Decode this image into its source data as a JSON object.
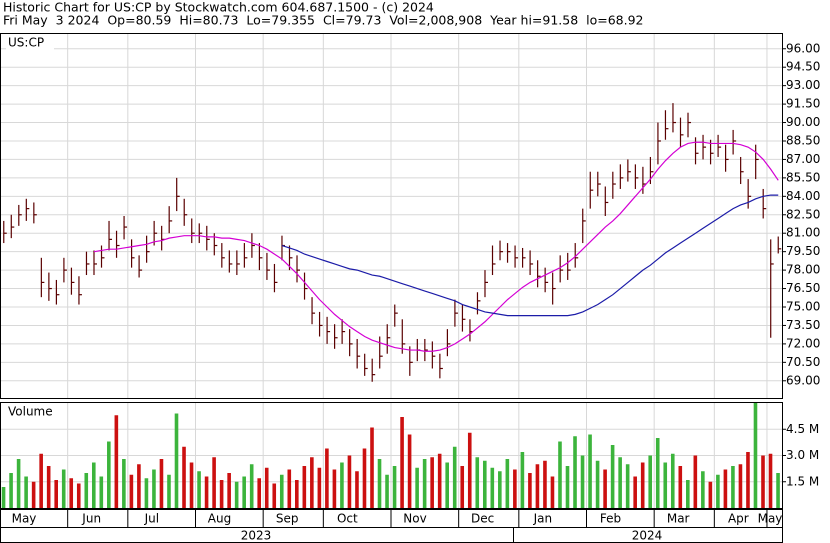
{
  "header": {
    "line1": "Historic Chart for US:CP by Stockwatch.com 604.687.1500 - (c) 2024",
    "line2": "Fri May  3 2024  Op=80.59  Hi=80.73  Lo=79.355  Cl=79.73  Vol=2,008,908  Year hi=91.58  lo=68.92"
  },
  "chart_data": [
    {
      "type": "ohlc",
      "title": "US:CP",
      "color": "#5a0000",
      "grid": true,
      "categories": [
        "May",
        null,
        null,
        null,
        null,
        null,
        null,
        null,
        null,
        "Jun",
        null,
        null,
        null,
        null,
        null,
        null,
        null,
        "Jul",
        null,
        null,
        null,
        null,
        null,
        null,
        null,
        null,
        "Aug",
        null,
        null,
        null,
        null,
        null,
        null,
        null,
        null,
        "Sep",
        null,
        null,
        null,
        null,
        null,
        null,
        null,
        "Oct",
        null,
        null,
        null,
        null,
        null,
        null,
        null,
        null,
        "Nov",
        null,
        null,
        null,
        null,
        null,
        null,
        null,
        null,
        "Dec",
        null,
        null,
        null,
        null,
        null,
        null,
        null,
        "Jan",
        null,
        null,
        null,
        null,
        null,
        null,
        null,
        null,
        "Feb",
        null,
        null,
        null,
        null,
        null,
        null,
        null,
        null,
        "Mar",
        null,
        null,
        null,
        null,
        null,
        null,
        null,
        "Apr",
        null,
        null,
        null,
        null,
        null,
        null,
        "May",
        null
      ],
      "years": [
        "2023",
        "2024"
      ],
      "high": [
        82,
        82.5,
        83.3,
        83.8,
        83.5,
        79,
        77.8,
        77.2,
        79,
        78.2,
        77.5,
        79.5,
        79.6,
        80,
        82,
        81.2,
        82.4,
        80.5,
        79.2,
        80.8,
        82,
        81.6,
        83.2,
        85.5,
        83.8,
        82.2,
        81.8,
        81.6,
        81,
        80.2,
        79.6,
        79.6,
        80.2,
        81,
        80.2,
        79.4,
        78.5,
        80.8,
        80,
        79.2,
        77.8,
        75.8,
        74.6,
        74.2,
        73.6,
        74,
        73.2,
        72.4,
        71.2,
        70.8,
        72.6,
        73.6,
        75.2,
        74,
        71.8,
        72.4,
        72.4,
        72.2,
        71.2,
        73.2,
        75.6,
        75.2,
        74,
        76.2,
        78,
        80,
        80.4,
        80.2,
        80,
        79.8,
        79.6,
        78.8,
        78.2,
        77.8,
        79.2,
        79.4,
        80.2,
        83,
        86,
        86,
        84.8,
        86,
        86.6,
        87,
        86.6,
        86.4,
        87.2,
        90,
        91,
        91.58,
        90.4,
        90.8,
        88.8,
        89,
        88.6,
        89,
        88.2,
        89.4,
        87.2,
        85.4,
        88.2,
        84.6,
        80.5,
        80.73
      ],
      "low": [
        80.2,
        80.6,
        81.6,
        82,
        81.8,
        75.8,
        75.5,
        75.2,
        77,
        76,
        75.2,
        77.6,
        77.6,
        78.2,
        79.6,
        79,
        80.5,
        78.2,
        77.4,
        78.6,
        80,
        79.6,
        81,
        82.8,
        81.6,
        80.2,
        80.2,
        79.6,
        79.2,
        78.2,
        77.8,
        77.6,
        78.2,
        79,
        78,
        77.2,
        76.2,
        78.8,
        78,
        77,
        75.6,
        73.6,
        72.6,
        72,
        71.6,
        72,
        71,
        70,
        69.4,
        68.92,
        70,
        71.2,
        73.4,
        71.2,
        69.4,
        70.6,
        70.6,
        70,
        69.2,
        71,
        73.4,
        73,
        72.2,
        74.4,
        75.8,
        77.6,
        78.8,
        78.6,
        78.2,
        78.2,
        77.6,
        76.6,
        76.2,
        75.2,
        77,
        77.2,
        78.2,
        80.2,
        83,
        84,
        82.4,
        83.8,
        84.6,
        85.2,
        84.6,
        84.2,
        85,
        86.6,
        88.6,
        89.2,
        88,
        88.8,
        86.6,
        87,
        86.6,
        87.2,
        86,
        87.4,
        85,
        83,
        85.4,
        82.2,
        72.5,
        79.355
      ],
      "close": [
        81,
        81.5,
        82.5,
        83,
        82.5,
        77,
        76.5,
        76,
        78,
        77,
        76,
        78.5,
        78.5,
        79,
        80.5,
        80,
        81.5,
        79,
        78,
        79.5,
        81,
        80.5,
        82,
        84,
        82.5,
        81,
        81,
        80.5,
        80,
        79,
        78.5,
        78.5,
        79,
        80,
        79,
        78,
        77,
        80,
        79,
        78,
        76.5,
        74.5,
        73.5,
        73,
        72.5,
        73,
        72,
        71,
        70,
        69.5,
        71,
        72.5,
        74.5,
        72,
        70.5,
        71.5,
        71.5,
        71,
        70,
        72,
        74.5,
        74,
        73,
        75.5,
        77,
        78.5,
        79.5,
        79.5,
        79,
        79,
        78.5,
        77.5,
        77,
        76.5,
        78,
        78,
        79,
        82,
        84.5,
        85,
        83.5,
        85,
        85.5,
        86,
        85.5,
        85,
        86,
        88.5,
        89.5,
        90,
        89,
        90,
        87.5,
        88,
        87.5,
        88,
        87,
        88.5,
        86,
        84,
        87,
        83,
        78.5,
        79.73
      ],
      "series": [
        {
          "color": "#d400d4",
          "values": [
            null,
            null,
            null,
            null,
            null,
            null,
            null,
            null,
            null,
            null,
            null,
            null,
            79.5,
            79.6,
            79.7,
            79.7,
            79.8,
            79.9,
            80,
            80.1,
            80.3,
            80.4,
            80.6,
            80.7,
            80.8,
            80.8,
            80.8,
            80.7,
            80.7,
            80.6,
            80.6,
            80.5,
            80.4,
            80.2,
            80,
            79.7,
            79.3,
            78.9,
            78.3,
            77.7,
            77,
            76.3,
            75.6,
            75,
            74.4,
            73.9,
            73.4,
            73,
            72.6,
            72.3,
            72.1,
            71.9,
            71.7,
            71.6,
            71.5,
            71.5,
            71.4,
            71.4,
            71.5,
            71.7,
            72,
            72.4,
            72.8,
            73.3,
            73.8,
            74.4,
            75,
            75.6,
            76.1,
            76.6,
            77,
            77.3,
            77.6,
            77.9,
            78.2,
            78.6,
            79.1,
            79.7,
            80.3,
            80.9,
            81.5,
            82,
            82.6,
            83.3,
            84,
            84.7,
            85.4,
            86.2,
            86.9,
            87.5,
            88,
            88.3,
            88.4,
            88.4,
            88.3,
            88.3,
            88.3,
            88.3,
            88.2,
            88,
            87.6,
            87,
            86.2,
            85.3
          ]
        },
        {
          "color": "#1c1ca8",
          "values": [
            null,
            null,
            null,
            null,
            null,
            null,
            null,
            null,
            null,
            null,
            null,
            null,
            null,
            null,
            null,
            null,
            null,
            null,
            null,
            null,
            null,
            null,
            null,
            null,
            null,
            null,
            null,
            null,
            null,
            null,
            null,
            null,
            null,
            null,
            null,
            null,
            null,
            80,
            79.8,
            79.6,
            79.3,
            79.1,
            78.9,
            78.7,
            78.5,
            78.3,
            78.1,
            78,
            77.8,
            77.6,
            77.5,
            77.3,
            77.1,
            76.9,
            76.7,
            76.5,
            76.3,
            76.1,
            75.9,
            75.7,
            75.5,
            75.2,
            75,
            74.8,
            74.6,
            74.5,
            74.4,
            74.3,
            74.3,
            74.3,
            74.3,
            74.3,
            74.3,
            74.3,
            74.3,
            74.3,
            74.4,
            74.6,
            74.9,
            75.2,
            75.6,
            76,
            76.5,
            77,
            77.5,
            78,
            78.4,
            78.9,
            79.4,
            79.8,
            80.2,
            80.6,
            81,
            81.4,
            81.8,
            82.2,
            82.6,
            83,
            83.3,
            83.5,
            83.8,
            84,
            84.1,
            84.1
          ]
        }
      ],
      "ylim": [
        67.6,
        97.2
      ],
      "yticks": [
        {
          "value": 69,
          "label": "69.00"
        },
        {
          "value": 70.5,
          "label": "70.50"
        },
        {
          "value": 72,
          "label": "72.00"
        },
        {
          "value": 73.5,
          "label": "73.50"
        },
        {
          "value": 75,
          "label": "75.00"
        },
        {
          "value": 76.5,
          "label": "76.50"
        },
        {
          "value": 78,
          "label": "78.00"
        },
        {
          "value": 79.5,
          "label": "79.50"
        },
        {
          "value": 81,
          "label": "81.00"
        },
        {
          "value": 82.5,
          "label": "82.50"
        },
        {
          "value": 84,
          "label": "84.00"
        },
        {
          "value": 85.5,
          "label": "85.50"
        },
        {
          "value": 87,
          "label": "87.00"
        },
        {
          "value": 88.5,
          "label": "88.50"
        },
        {
          "value": 90,
          "label": "90.00"
        },
        {
          "value": 91.5,
          "label": "91.50"
        },
        {
          "value": 93,
          "label": "93.00"
        },
        {
          "value": 94.5,
          "label": "94.50"
        },
        {
          "value": 96,
          "label": "96.00"
        }
      ]
    },
    {
      "type": "bar",
      "title": "Volume",
      "up_color": "#3cb43c",
      "down_color": "#cc1010",
      "grid": true,
      "values": [
        1.2,
        2.0,
        2.8,
        1.8,
        1.5,
        3.1,
        2.4,
        1.6,
        2.2,
        1.7,
        1.4,
        2.0,
        2.6,
        1.8,
        3.8,
        5.3,
        2.8,
        1.9,
        2.5,
        1.7,
        2.2,
        2.8,
        1.9,
        5.4,
        3.5,
        2.6,
        2.1,
        1.8,
        2.9,
        1.6,
        2.0,
        1.5,
        1.8,
        2.5,
        1.7,
        2.3,
        1.4,
        1.9,
        2.2,
        1.6,
        2.4,
        2.9,
        2.3,
        3.4,
        2.2,
        2.6,
        3.0,
        2.1,
        3.4,
        4.6,
        2.8,
        1.9,
        2.4,
        5.2,
        4.2,
        2.3,
        2.8,
        2.9,
        3.1,
        2.6,
        3.5,
        2.4,
        4.3,
        2.9,
        2.7,
        2.3,
        2.1,
        2.8,
        2.2,
        3.2,
        2.0,
        2.5,
        2.7,
        1.8,
        3.8,
        2.4,
        4.1,
        3.0,
        4.2,
        2.7,
        2.2,
        3.6,
        2.9,
        2.5,
        1.8,
        2.6,
        3.0,
        4.0,
        2.6,
        3.1,
        2.4,
        1.6,
        3.0,
        2.1,
        1.5,
        1.9,
        2.2,
        2.4,
        2.5,
        3.2,
        6.0,
        3.0,
        3.1,
        2.0
      ],
      "ylim": [
        0,
        6.0
      ],
      "yticks": [
        {
          "value": 1.5,
          "label": "1.5 M"
        },
        {
          "value": 3.0,
          "label": "3.0 M"
        },
        {
          "value": 4.5,
          "label": "4.5 M"
        }
      ]
    }
  ]
}
